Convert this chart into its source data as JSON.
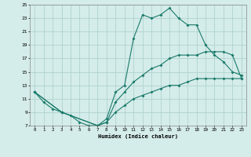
{
  "xlabel": "Humidex (Indice chaleur)",
  "bg_color": "#d4ecea",
  "grid_color": "#aacfca",
  "line_color": "#1a7a6a",
  "xlim": [
    -0.5,
    23.5
  ],
  "ylim": [
    7,
    25
  ],
  "xticks": [
    0,
    1,
    2,
    3,
    4,
    5,
    6,
    7,
    8,
    9,
    10,
    11,
    12,
    13,
    14,
    15,
    16,
    17,
    18,
    19,
    20,
    21,
    22,
    23
  ],
  "yticks": [
    7,
    9,
    11,
    13,
    15,
    17,
    19,
    21,
    23,
    25
  ],
  "line1_x": [
    0,
    1,
    2,
    3,
    4,
    5,
    6,
    7,
    8,
    9,
    10,
    11,
    12,
    13,
    14,
    15,
    16,
    17,
    18,
    19,
    20,
    21,
    22,
    23
  ],
  "line1_y": [
    12,
    10.5,
    9.5,
    9,
    8.5,
    7.5,
    7,
    7,
    8,
    12,
    13,
    20,
    23.5,
    23,
    23.5,
    24.5,
    23,
    22,
    22,
    19,
    17.5,
    16.5,
    15,
    14.5
  ],
  "line2_x": [
    0,
    3,
    7,
    8,
    9,
    10,
    11,
    12,
    13,
    14,
    15,
    16,
    17,
    18,
    19,
    20,
    21,
    22,
    23
  ],
  "line2_y": [
    12,
    9,
    7,
    7.5,
    10.5,
    12,
    13.5,
    14.5,
    15.5,
    16,
    17,
    17.5,
    17.5,
    17.5,
    18,
    18,
    18,
    17.5,
    14
  ],
  "line3_x": [
    0,
    3,
    7,
    8,
    9,
    10,
    11,
    12,
    13,
    14,
    15,
    16,
    17,
    18,
    19,
    20,
    21,
    22,
    23
  ],
  "line3_y": [
    12,
    9,
    7,
    7.5,
    9,
    10,
    11,
    11.5,
    12,
    12.5,
    13,
    13,
    13.5,
    14,
    14,
    14,
    14,
    14,
    14
  ]
}
